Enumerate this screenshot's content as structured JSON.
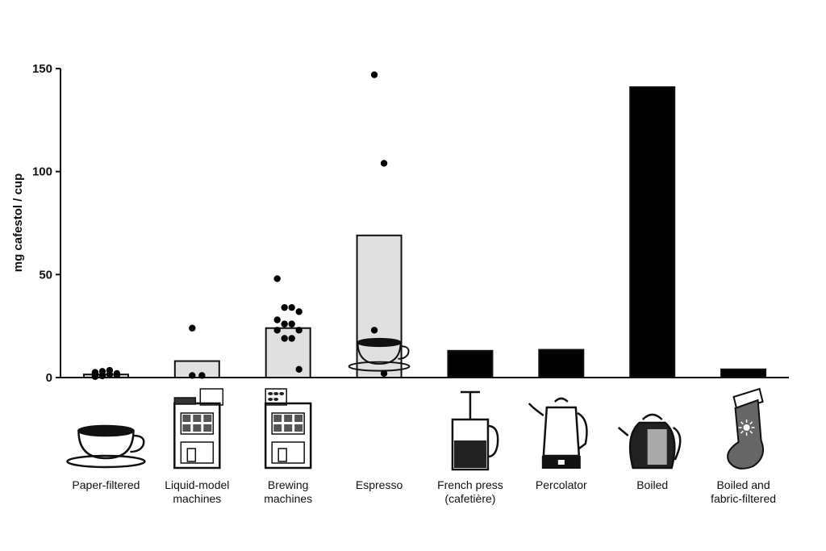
{
  "chart_data": {
    "type": "bar",
    "ylabel": "mg cafestol / cup",
    "ylim": [
      0,
      150
    ],
    "yticks": [
      "0",
      "50",
      "100",
      "150"
    ],
    "categories": [
      {
        "label": [
          "Paper-filtered"
        ],
        "icon": "paper-filtered-cup-icon",
        "value": 1.5,
        "color": "#e0e0e0",
        "points": [
          0.5,
          1.0,
          1.5,
          2.0,
          2.5,
          3.0,
          3.5,
          1.2,
          2.2,
          0.8
        ]
      },
      {
        "label": [
          "Liquid-model",
          "machines"
        ],
        "icon": "liquid-model-machine-icon",
        "value": 8,
        "color": "#e0e0e0",
        "points": [
          24,
          1,
          1
        ]
      },
      {
        "label": [
          "Brewing",
          "machines"
        ],
        "icon": "brewing-machine-icon",
        "value": 24,
        "color": "#e0e0e0",
        "points": [
          48,
          34,
          34,
          32,
          28,
          26,
          26,
          23,
          23,
          19,
          19,
          4
        ]
      },
      {
        "label": [
          "Espresso"
        ],
        "icon": "espresso-cup-icon",
        "value": 69,
        "color": "#e0e0e0",
        "points": [
          147,
          104,
          23,
          2
        ]
      },
      {
        "label": [
          "French press",
          "(cafetière)"
        ],
        "icon": "french-press-icon",
        "value": 13,
        "color": "#000000",
        "points": []
      },
      {
        "label": [
          "Percolator"
        ],
        "icon": "percolator-icon",
        "value": 13.5,
        "color": "#000000",
        "points": []
      },
      {
        "label": [
          "Boiled"
        ],
        "icon": "boiled-kettle-icon",
        "value": 141,
        "color": "#000000",
        "points": []
      },
      {
        "label": [
          "Boiled and",
          "fabric-filtered"
        ],
        "icon": "fabric-filter-sock-icon",
        "value": 4,
        "color": "#000000",
        "points": []
      }
    ]
  }
}
